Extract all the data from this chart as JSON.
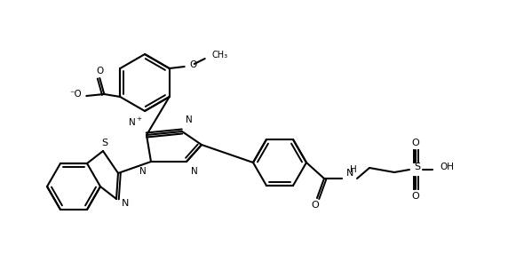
{
  "lc": "#000000",
  "bg": "#ffffff",
  "lw": 1.5,
  "lw_i": 1.4,
  "fsa": 7.5,
  "dpi": 100,
  "figsize": [
    5.72,
    2.95
  ],
  "xlim": [
    5,
    577
  ],
  "ylim": [
    5,
    300
  ]
}
